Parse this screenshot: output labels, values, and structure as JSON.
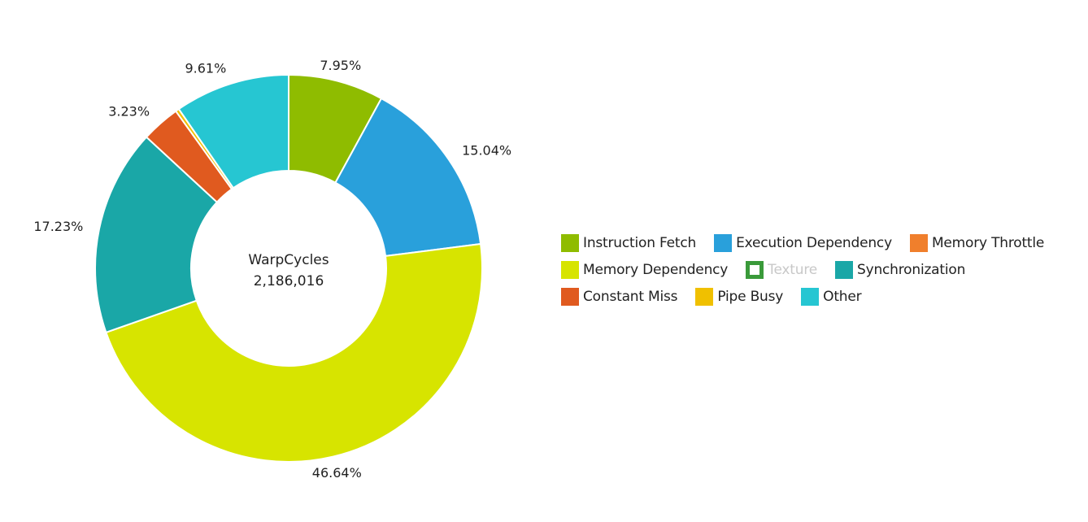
{
  "chart_data": {
    "type": "pie",
    "donut": true,
    "center_label": "WarpCycles",
    "center_value": "2,186,016",
    "slices": [
      {
        "name": "Instruction Fetch",
        "value": 7.95,
        "label": "7.95%",
        "color": "#8fbc00"
      },
      {
        "name": "Execution Dependency",
        "value": 15.04,
        "label": "15.04%",
        "color": "#29a0db"
      },
      {
        "name": "Memory Throttle",
        "value": 0.0,
        "label": "",
        "color": "#f07f2c"
      },
      {
        "name": "Memory Dependency",
        "value": 46.64,
        "label": "46.64%",
        "color": "#d7e400"
      },
      {
        "name": "Texture",
        "value": 0.0,
        "label": "",
        "color": "#3a9a3a"
      },
      {
        "name": "Synchronization",
        "value": 17.23,
        "label": "17.23%",
        "color": "#1aa7a7"
      },
      {
        "name": "Constant Miss",
        "value": 3.23,
        "label": "3.23%",
        "color": "#e05a1f"
      },
      {
        "name": "Pipe Busy",
        "value": 0.3,
        "label": "",
        "color": "#f0c000"
      },
      {
        "name": "Other",
        "value": 9.61,
        "label": "9.61%",
        "color": "#26c6d2"
      }
    ],
    "legend": {
      "placement": "right",
      "rows": [
        [
          {
            "label": "Instruction Fetch",
            "color": "#8fbc00",
            "enabled": true
          },
          {
            "label": "Execution Dependency",
            "color": "#29a0db",
            "enabled": true
          },
          {
            "label": "Memory Throttle",
            "color": "#f07f2c",
            "enabled": true
          }
        ],
        [
          {
            "label": "Memory Dependency",
            "color": "#d7e400",
            "enabled": true
          },
          {
            "label": "Texture",
            "color": "#3a9a3a",
            "enabled": false
          },
          {
            "label": "Synchronization",
            "color": "#1aa7a7",
            "enabled": true
          }
        ],
        [
          {
            "label": "Constant Miss",
            "color": "#e05a1f",
            "enabled": true
          },
          {
            "label": "Pipe Busy",
            "color": "#f0c000",
            "enabled": true
          },
          {
            "label": "Other",
            "color": "#26c6d2",
            "enabled": true
          }
        ]
      ]
    }
  }
}
